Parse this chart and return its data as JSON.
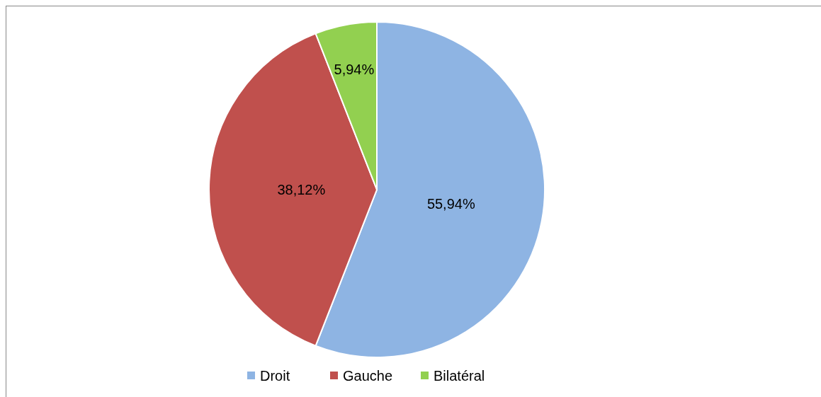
{
  "chart_data": {
    "type": "pie",
    "categories": [
      "Droit",
      "Gauche",
      "Bilatéral"
    ],
    "values": [
      55.94,
      38.12,
      5.94
    ],
    "colors": [
      "#8eb4e3",
      "#c0504d",
      "#92d050"
    ],
    "value_labels": [
      "55,94%",
      "38,12%",
      "5,94%"
    ],
    "legend": "bottom"
  }
}
